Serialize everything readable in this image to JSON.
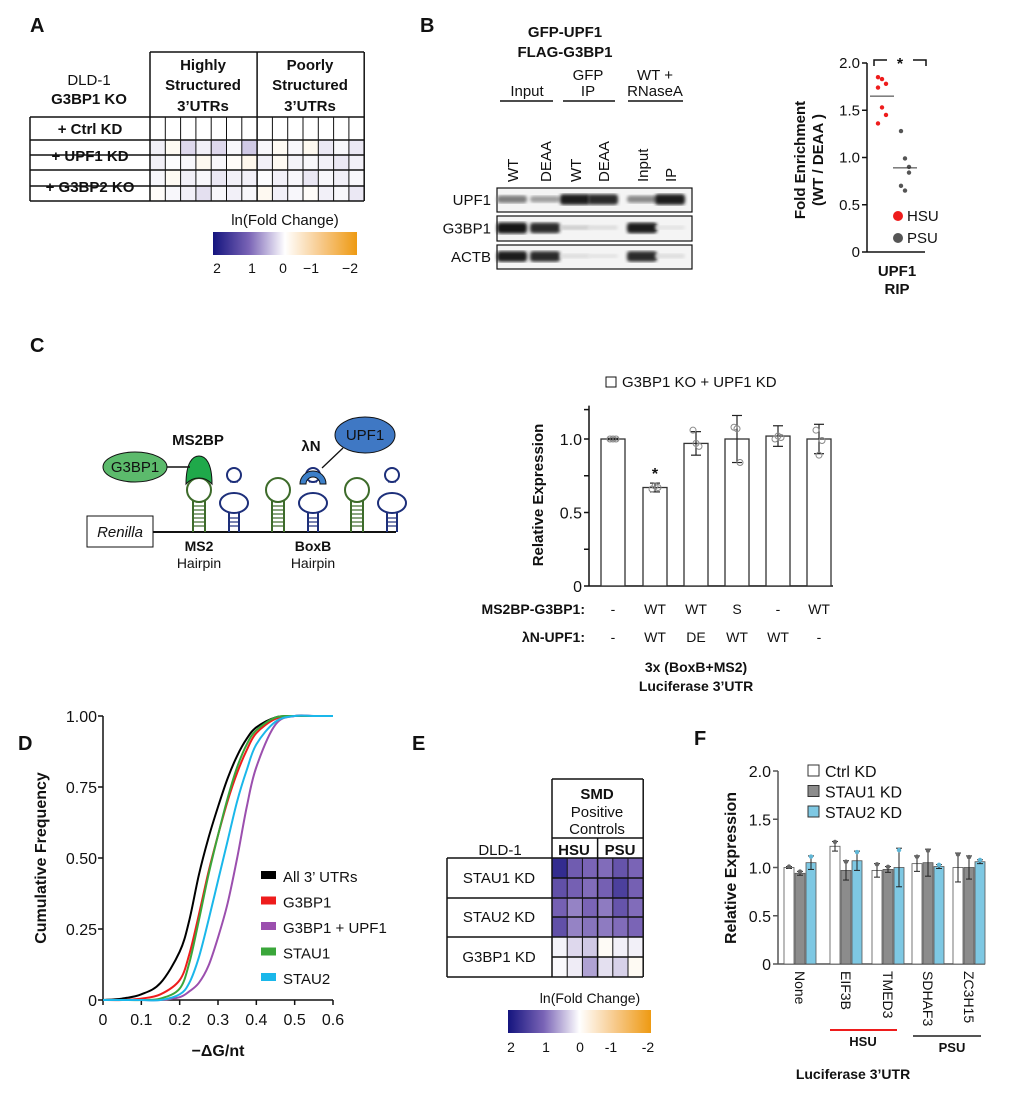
{
  "panels": {
    "a": "A",
    "b": "B",
    "c": "C",
    "d": "D",
    "e": "E",
    "f": "F"
  },
  "panel_a": {
    "cell_line": "DLD-1",
    "genotype": "G3BP1 KO",
    "col_groups": [
      [
        "Highly",
        "Structured",
        "3’UTRs"
      ],
      [
        "Poorly",
        "Structured",
        "3’UTRs"
      ]
    ],
    "rows": [
      "+ Ctrl KD",
      "+ UPF1 KD",
      "+ G3BP2 KO"
    ],
    "heat": [
      [
        0,
        0,
        0,
        0,
        0,
        0,
        0,
        0,
        0,
        0,
        0,
        0,
        0,
        0
      ],
      [
        0.1,
        -0.1,
        0.25,
        0.1,
        0.25,
        0.05,
        0.35,
        0.05,
        -0.1,
        0.05,
        -0.12,
        0.15,
        0.05,
        0.15
      ],
      [
        0.1,
        0.02,
        0.05,
        -0.12,
        0.05,
        -0.05,
        -0.15,
        0.1,
        -0.1,
        0.08,
        0.05,
        0.1,
        0.15,
        0.1
      ],
      [
        0.05,
        -0.1,
        0.1,
        0.05,
        0.15,
        0.1,
        0.1,
        0.02,
        0.1,
        0.05,
        0.15,
        0.05,
        0.1,
        0.05
      ],
      [
        -0.05,
        0.05,
        0.1,
        0.2,
        0.05,
        0.1,
        0.05,
        -0.12,
        0.1,
        0.05,
        -0.05,
        0.1,
        0.05,
        0.15
      ]
    ],
    "colorbar": {
      "label": "ln(Fold Change)",
      "ticks": [
        "2",
        "1",
        "0",
        "−1",
        "−2"
      ]
    }
  },
  "panel_b": {
    "title": [
      "GFP-UPF1",
      "FLAG-G3BP1"
    ],
    "groups": [
      [
        "Input"
      ],
      [
        "GFP",
        "IP"
      ],
      [
        "WT +",
        "RNaseA"
      ]
    ],
    "lanes": [
      "WT",
      "DEAA",
      "WT",
      "DEAA",
      "Input",
      "IP"
    ],
    "blots": [
      {
        "name": "UPF1",
        "band_intensity": [
          0.5,
          0.35,
          0.95,
          0.9,
          0.45,
          0.95
        ]
      },
      {
        "name": "G3BP1",
        "band_intensity": [
          1,
          0.9,
          0.12,
          0.05,
          0.95,
          0.02
        ]
      },
      {
        "name": "ACTB",
        "band_intensity": [
          0.95,
          0.9,
          0.05,
          0.02,
          0.9,
          0.05
        ]
      }
    ]
  },
  "chart_data": [
    {
      "id": "B-dot",
      "type": "scatter",
      "ylabel": [
        "Fold Enrichment",
        "(WT / DEAA )"
      ],
      "xlabel": [
        "UPF1",
        "RIP"
      ],
      "ylim": [
        0,
        2.0
      ],
      "yticks": [
        "0",
        "0.5",
        "1.0",
        "1.5",
        "2.0"
      ],
      "significance": "*",
      "series": [
        {
          "name": "HSU",
          "color": "#ee1c1c",
          "values": [
            1.85,
            1.83,
            1.78,
            1.74,
            1.53,
            1.45,
            1.36
          ],
          "mean": 1.65
        },
        {
          "name": "PSU",
          "color": "#555555",
          "values": [
            1.28,
            0.99,
            0.84,
            0.7,
            0.65,
            0.9
          ],
          "mean": 0.89
        }
      ]
    },
    {
      "id": "C-bar",
      "type": "bar",
      "legend": "G3BP1 KO + UPF1 KD",
      "ylabel": "Relative Expression",
      "ylim": [
        0,
        1.2
      ],
      "yticks": [
        "0",
        "0.5",
        "1.0"
      ],
      "row_labels": [
        "MS2BP-G3BP1:",
        "λN-UPF1:"
      ],
      "rows": [
        [
          "-",
          "WT",
          "WT",
          "S",
          "-",
          "WT"
        ],
        [
          "-",
          "WT",
          "DE",
          "WT",
          "WT",
          "-"
        ]
      ],
      "values": [
        1.0,
        0.67,
        0.97,
        1.0,
        1.02,
        1.0
      ],
      "errors": [
        0.005,
        0.03,
        0.08,
        0.16,
        0.07,
        0.1
      ],
      "points": [
        [
          1.0,
          1.0,
          1.0
        ],
        [
          0.66,
          0.68,
          0.67
        ],
        [
          1.06,
          0.97,
          0.95
        ],
        [
          1.08,
          1.07,
          0.84
        ],
        [
          1.0,
          1.02,
          1.01
        ],
        [
          1.06,
          0.89,
          0.99
        ]
      ],
      "annotations": [
        "",
        "*",
        "",
        "",
        "",
        ""
      ],
      "xlabel": [
        "3x (BoxB+MS2)",
        "Luciferase 3’UTR"
      ]
    },
    {
      "id": "D-cdf",
      "type": "line",
      "xlabel": "−ΔG/nt",
      "ylabel": "Cumulative Frequency",
      "xlim": [
        0,
        0.6
      ],
      "ylim": [
        0,
        1
      ],
      "xticks": [
        "0",
        "0.1",
        "0.2",
        "0.3",
        "0.4",
        "0.5",
        "0.6"
      ],
      "yticks": [
        "0",
        "0.25",
        "0.50",
        "0.75",
        "1.00"
      ],
      "x": [
        0,
        0.05,
        0.1,
        0.15,
        0.2,
        0.225,
        0.25,
        0.275,
        0.3,
        0.325,
        0.35,
        0.375,
        0.4,
        0.45,
        0.5,
        0.55,
        0.6
      ],
      "series": [
        {
          "name": "All 3’ UTRs",
          "color": "#000000",
          "values": [
            0,
            0.005,
            0.02,
            0.06,
            0.17,
            0.28,
            0.44,
            0.57,
            0.68,
            0.78,
            0.86,
            0.92,
            0.96,
            0.995,
            1,
            1,
            1
          ]
        },
        {
          "name": "G3BP1",
          "color": "#ee1c1c",
          "values": [
            0,
            0,
            0.005,
            0.02,
            0.07,
            0.16,
            0.3,
            0.45,
            0.58,
            0.7,
            0.8,
            0.88,
            0.94,
            0.99,
            1,
            1,
            1
          ]
        },
        {
          "name": "G3BP1 + UPF1",
          "color": "#9b4fae",
          "values": [
            0,
            0,
            0,
            0,
            0.01,
            0.03,
            0.06,
            0.12,
            0.22,
            0.34,
            0.5,
            0.68,
            0.82,
            0.97,
            1,
            1,
            1
          ]
        },
        {
          "name": "STAU1",
          "color": "#3aa63a",
          "values": [
            0,
            0,
            0,
            0.005,
            0.04,
            0.13,
            0.28,
            0.44,
            0.58,
            0.71,
            0.82,
            0.9,
            0.95,
            0.995,
            1,
            1,
            1
          ]
        },
        {
          "name": "STAU2",
          "color": "#1ab7ea",
          "values": [
            0,
            0,
            0,
            0,
            0.02,
            0.06,
            0.15,
            0.28,
            0.42,
            0.56,
            0.7,
            0.81,
            0.9,
            0.98,
            1,
            1,
            1
          ]
        }
      ]
    },
    {
      "id": "F-bar",
      "type": "bar",
      "ylabel": "Relative Expression",
      "ylim": [
        0,
        2.0
      ],
      "yticks": [
        "0",
        "0.5",
        "1.0",
        "1.5",
        "2.0"
      ],
      "categories": [
        "None",
        "EIF3B",
        "TMED3",
        "SDHAF3",
        "ZC3H15"
      ],
      "series": [
        {
          "name": "Ctrl KD",
          "color": "#ffffff",
          "values": [
            1.0,
            1.22,
            0.97,
            1.04,
            1.0
          ],
          "errors": [
            0.01,
            0.05,
            0.07,
            0.08,
            0.15
          ]
        },
        {
          "name": "STAU1 KD",
          "color": "#8c8c8c",
          "values": [
            0.94,
            0.97,
            0.98,
            1.05,
            1.0
          ],
          "errors": [
            0.02,
            0.1,
            0.03,
            0.14,
            0.12
          ]
        },
        {
          "name": "STAU2 KD",
          "color": "#7ec8e3",
          "values": [
            1.05,
            1.07,
            1.0,
            1.01,
            1.06
          ],
          "errors": [
            0.07,
            0.1,
            0.2,
            0.02,
            0.02
          ]
        }
      ],
      "groups": [
        {
          "label": "HSU",
          "color": "#ee1c1c"
        },
        {
          "label": "PSU",
          "color": "#777777"
        }
      ],
      "xlabel": "Luciferase 3’UTR"
    }
  ],
  "panel_c_diagram": {
    "reporter": "Renilla",
    "ms2bp": "MS2BP",
    "g3bp1": "G3BP1",
    "lambda_n": "λN",
    "upf1": "UPF1",
    "ms2": [
      "MS2",
      "Hairpin"
    ],
    "boxb": [
      "BoxB",
      "Hairpin"
    ]
  },
  "panel_e": {
    "cell_line": "DLD-1",
    "header": [
      "SMD",
      "Positive",
      "Controls"
    ],
    "cols": [
      "HSU",
      "PSU"
    ],
    "rows": [
      "STAU1 KD",
      "STAU2 KD",
      "G3BP1 KD"
    ],
    "heat": [
      [
        1.7,
        1.1,
        1.0,
        0.95,
        1.2,
        1.0
      ],
      [
        1.25,
        1.05,
        0.95,
        1.05,
        1.45,
        1.05
      ],
      [
        1.05,
        0.8,
        1.0,
        0.85,
        1.2,
        0.95
      ],
      [
        1.25,
        0.8,
        0.9,
        0.85,
        0.95,
        1.0
      ],
      [
        0.08,
        0.25,
        0.35,
        -0.08,
        0.1,
        0.1
      ],
      [
        0.04,
        0.12,
        0.6,
        0.2,
        0.3,
        -0.1
      ]
    ],
    "colorbar": {
      "label": "ln(Fold Change)",
      "ticks": [
        "2",
        "1",
        "0",
        "-1",
        "-2"
      ]
    }
  }
}
